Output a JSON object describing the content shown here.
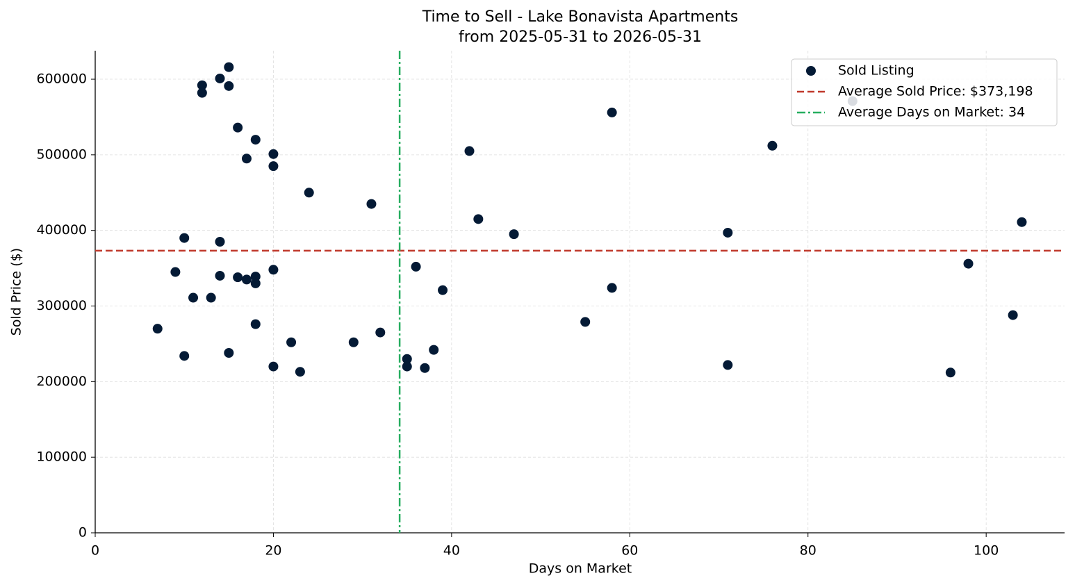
{
  "chart_data": {
    "type": "scatter",
    "title": "Time to Sell - Lake Bonavista Apartments",
    "subtitle": "from 2025-05-31 to 2026-05-31",
    "x_label": "Days on Market",
    "y_label": "Sold Price ($)",
    "x": [
      15,
      12,
      14,
      15,
      12,
      16,
      18,
      17,
      20,
      20,
      24,
      31,
      42,
      43,
      47,
      58,
      76,
      85,
      71,
      104,
      98,
      103,
      96,
      71,
      58,
      55,
      10,
      14,
      9,
      14,
      16,
      17,
      18,
      18,
      20,
      11,
      13,
      7,
      18,
      10,
      15,
      20,
      22,
      23,
      29,
      32,
      36,
      39,
      35,
      35,
      37,
      38
    ],
    "series": [
      {
        "name": "Sold Listing",
        "color": "#041a35",
        "values": [
          616000,
          592000,
          601000,
          591000,
          582000,
          536000,
          520000,
          495000,
          501000,
          485000,
          450000,
          435000,
          505000,
          415000,
          395000,
          556000,
          512000,
          571000,
          397000,
          411000,
          356000,
          288000,
          212000,
          222000,
          324000,
          279000,
          390000,
          385000,
          345000,
          340000,
          338000,
          335000,
          339000,
          330000,
          348000,
          311000,
          311000,
          270000,
          276000,
          234000,
          238000,
          220000,
          252000,
          213000,
          252000,
          265000,
          352000,
          321000,
          230000,
          220000,
          218000,
          242000
        ]
      }
    ],
    "reference_lines": [
      {
        "name": "Average Sold Price: $373,198",
        "value": 373198,
        "orientation": "horizontal",
        "color": "#c0392b",
        "dash": "dashed"
      },
      {
        "name": "Average Days on Market: 34",
        "value": 34.17,
        "orientation": "vertical",
        "color": "#27ae60",
        "dash": "dashdot"
      }
    ],
    "xlim": [
      0,
      108.8
    ],
    "ylim": [
      0,
      637700
    ],
    "xticks": [
      0,
      20,
      40,
      60,
      80,
      100
    ],
    "yticks": [
      0,
      100000,
      200000,
      300000,
      400000,
      500000,
      600000
    ],
    "grid": true,
    "legend": "upper-right"
  }
}
